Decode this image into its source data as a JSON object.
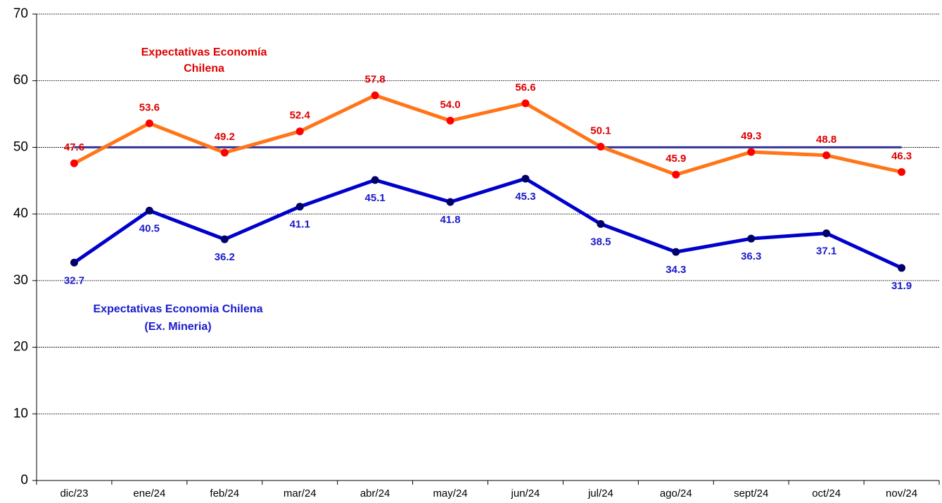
{
  "chart_data": {
    "type": "line",
    "categories": [
      "dic/23",
      "ene/24",
      "feb/24",
      "mar/24",
      "abr/24",
      "may/24",
      "jun/24",
      "jul/24",
      "ago/24",
      "sept/24",
      "oct/24",
      "nov/24"
    ],
    "series": [
      {
        "color": "#333399",
        "values": [
          50,
          50,
          50,
          50,
          50,
          50,
          50,
          50,
          50,
          50,
          50,
          50
        ]
      },
      {
        "color": "#ff7518",
        "marker_color": "#ff0000",
        "label_color": "#e00000",
        "values": [
          47.6,
          53.6,
          49.2,
          52.4,
          57.8,
          54.0,
          56.6,
          50.1,
          45.9,
          49.3,
          48.8,
          46.3
        ],
        "value_labels": [
          "47.6",
          "53.6",
          "49.2",
          "52.4",
          "57.8",
          "54.0",
          "56.6",
          "50.1",
          "45.9",
          "49.3",
          "48.8",
          "46.3"
        ],
        "label_position": "above"
      },
      {
        "color": "#0000cc",
        "marker_color": "#000066",
        "label_color": "#1a1acc",
        "values": [
          32.7,
          40.5,
          36.2,
          41.1,
          45.1,
          41.8,
          45.3,
          38.5,
          34.3,
          36.3,
          37.1,
          31.9
        ],
        "label_position": "below"
      }
    ],
    "annotations": [
      {
        "lines": [
          "Expectativas Economía",
          "Chilena"
        ],
        "color": "#e00000"
      },
      {
        "lines": [
          "Expectativas Economia Chilena",
          "(Ex. Mineria)"
        ],
        "color": "#1a1acc"
      }
    ],
    "ylim": [
      0,
      70
    ],
    "yticks": [
      0,
      10,
      20,
      30,
      40,
      50,
      60,
      70
    ],
    "grid": true
  }
}
